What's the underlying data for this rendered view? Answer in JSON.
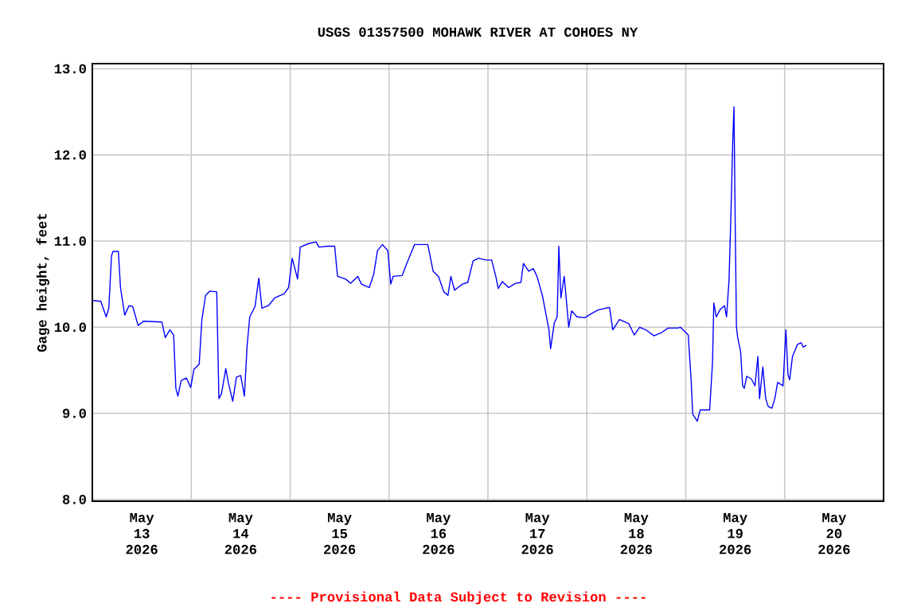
{
  "chart_data": {
    "type": "line",
    "title": "USGS 01357500 MOHAWK RIVER AT COHOES NY",
    "ylabel": "Gage height, feet",
    "annotations": [
      "---- Provisional Data Subject to Revision ----"
    ],
    "x": [
      "2026-05-13T00:08",
      "2026-05-13T02:04",
      "2026-05-13T03:21",
      "2026-05-13T04:00",
      "2026-05-13T04:39",
      "2026-05-13T05:02",
      "2026-05-13T06:19",
      "2026-05-13T06:50",
      "2026-05-13T07:52",
      "2026-05-13T08:54",
      "2026-05-13T09:48",
      "2026-05-13T11:06",
      "2026-05-13T12:23",
      "2026-05-13T16:54",
      "2026-05-13T17:41",
      "2026-05-13T18:50",
      "2026-05-13T19:44",
      "2026-05-13T20:16",
      "2026-05-13T20:46",
      "2026-05-13T21:33",
      "2026-05-13T22:50",
      "2026-05-13T23:52",
      "2026-05-14T00:39",
      "2026-05-14T01:56",
      "2026-05-14T02:35",
      "2026-05-14T03:29",
      "2026-05-14T04:31",
      "2026-05-14T06:11",
      "2026-05-14T06:43",
      "2026-05-14T07:21",
      "2026-05-14T08:23",
      "2026-05-14T09:02",
      "2026-05-14T10:04",
      "2026-05-14T10:58",
      "2026-05-14T12:00",
      "2026-05-14T12:54",
      "2026-05-14T13:33",
      "2026-05-14T14:12",
      "2026-05-14T15:29",
      "2026-05-14T16:23",
      "2026-05-14T17:10",
      "2026-05-14T18:43",
      "2026-05-14T20:16",
      "2026-05-14T22:35",
      "2026-05-14T23:37",
      "2026-05-15T00:30",
      "2026-05-15T01:48",
      "2026-05-15T02:27",
      "2026-05-15T04:24",
      "2026-05-15T06:18",
      "2026-05-15T07:00",
      "2026-05-15T08:54",
      "2026-05-15T10:48",
      "2026-05-15T11:30",
      "2026-05-15T13:24",
      "2026-05-15T14:42",
      "2026-05-15T16:24",
      "2026-05-15T17:18",
      "2026-05-15T19:12",
      "2026-05-15T20:18",
      "2026-05-15T21:12",
      "2026-05-15T22:24",
      "2026-05-15T23:42",
      "2026-05-16T00:24",
      "2026-05-16T01:00",
      "2026-05-16T03:12",
      "2026-05-16T04:18",
      "2026-05-16T06:12",
      "2026-05-16T09:24",
      "2026-05-16T10:42",
      "2026-05-16T12:00",
      "2026-05-16T13:18",
      "2026-05-16T14:18",
      "2026-05-16T15:00",
      "2026-05-16T15:54",
      "2026-05-16T17:48",
      "2026-05-16T19:06",
      "2026-05-16T20:24",
      "2026-05-16T21:42",
      "2026-05-16T23:36",
      "2026-05-17T00:54",
      "2026-05-17T01:54",
      "2026-05-17T02:30",
      "2026-05-17T03:30",
      "2026-05-17T05:00",
      "2026-05-17T06:42",
      "2026-05-17T08:00",
      "2026-05-17T08:36",
      "2026-05-17T09:54",
      "2026-05-17T11:00",
      "2026-05-17T11:54",
      "2026-05-17T13:12",
      "2026-05-17T13:48",
      "2026-05-17T14:48",
      "2026-05-17T15:12",
      "2026-05-17T16:06",
      "2026-05-17T16:48",
      "2026-05-17T17:12",
      "2026-05-17T17:42",
      "2026-05-17T18:30",
      "2026-05-17T19:12",
      "2026-05-17T19:36",
      "2026-05-17T20:18",
      "2026-05-17T21:36",
      "2026-05-17T23:30",
      "2026-05-18T00:48",
      "2026-05-18T02:42",
      "2026-05-18T05:30",
      "2026-05-18T06:18",
      "2026-05-18T07:54",
      "2026-05-18T10:12",
      "2026-05-18T11:30",
      "2026-05-18T12:48",
      "2026-05-18T14:18",
      "2026-05-18T16:18",
      "2026-05-18T18:12",
      "2026-05-18T19:42",
      "2026-05-18T22:06",
      "2026-05-18T22:42",
      "2026-05-19T00:36",
      "2026-05-19T01:18",
      "2026-05-19T01:42",
      "2026-05-19T02:48",
      "2026-05-19T03:30",
      "2026-05-19T05:48",
      "2026-05-19T06:30",
      "2026-05-19T06:48",
      "2026-05-19T07:24",
      "2026-05-19T08:24",
      "2026-05-19T09:24",
      "2026-05-19T09:54",
      "2026-05-19T10:30",
      "2026-05-19T11:00",
      "2026-05-19T11:24",
      "2026-05-19T11:42",
      "2026-05-19T12:00",
      "2026-05-19T12:18",
      "2026-05-19T12:36",
      "2026-05-19T13:18",
      "2026-05-19T13:48",
      "2026-05-19T14:12",
      "2026-05-19T14:48",
      "2026-05-19T15:54",
      "2026-05-19T16:48",
      "2026-05-19T17:30",
      "2026-05-19T17:54",
      "2026-05-19T18:42",
      "2026-05-19T19:24",
      "2026-05-19T20:00",
      "2026-05-19T20:54",
      "2026-05-19T21:36",
      "2026-05-19T22:18",
      "2026-05-19T23:36",
      "2026-05-20T00:18",
      "2026-05-20T00:48",
      "2026-05-20T01:12",
      "2026-05-20T01:54",
      "2026-05-20T03:06",
      "2026-05-20T04:00",
      "2026-05-20T04:30",
      "2026-05-20T05:18"
    ],
    "series": [
      {
        "color": "#0000ff",
        "values": [
          10.31,
          10.3,
          10.12,
          10.22,
          10.83,
          10.88,
          10.88,
          10.46,
          10.14,
          10.25,
          10.24,
          10.02,
          10.07,
          10.06,
          9.88,
          9.97,
          9.91,
          9.29,
          9.2,
          9.38,
          9.41,
          9.3,
          9.51,
          9.57,
          10.09,
          10.37,
          10.42,
          10.41,
          9.17,
          9.23,
          9.52,
          9.35,
          9.14,
          9.42,
          9.44,
          9.2,
          9.78,
          10.12,
          10.24,
          10.57,
          10.22,
          10.25,
          10.34,
          10.39,
          10.46,
          10.8,
          10.56,
          10.93,
          10.97,
          10.99,
          10.93,
          10.94,
          10.94,
          10.59,
          10.56,
          10.51,
          10.59,
          10.5,
          10.46,
          10.62,
          10.89,
          10.96,
          10.89,
          10.5,
          10.59,
          10.6,
          10.74,
          10.96,
          10.96,
          10.65,
          10.59,
          10.41,
          10.37,
          10.59,
          10.43,
          10.5,
          10.52,
          10.77,
          10.8,
          10.78,
          10.78,
          10.59,
          10.45,
          10.53,
          10.46,
          10.51,
          10.52,
          10.74,
          10.65,
          10.68,
          10.59,
          10.37,
          10.22,
          9.97,
          9.75,
          10.05,
          10.12,
          10.94,
          10.34,
          10.59,
          10.22,
          10.0,
          10.19,
          10.12,
          10.11,
          10.15,
          10.2,
          10.23,
          9.97,
          10.09,
          10.04,
          9.91,
          10.0,
          9.97,
          9.9,
          9.94,
          9.99,
          9.99,
          10.0,
          9.91,
          9.39,
          8.99,
          8.91,
          9.04,
          9.04,
          9.6,
          10.28,
          10.12,
          10.21,
          10.25,
          10.12,
          10.55,
          11.38,
          12.15,
          12.56,
          11.2,
          10.0,
          9.88,
          9.72,
          9.32,
          9.29,
          9.43,
          9.4,
          9.32,
          9.66,
          9.17,
          9.54,
          9.17,
          9.08,
          9.06,
          9.17,
          9.36,
          9.32,
          9.97,
          9.45,
          9.39,
          9.66,
          9.8,
          9.82,
          9.77,
          9.79
        ]
      }
    ],
    "xlim": [
      "2026-05-13T00:00",
      "2026-05-21T00:00"
    ],
    "xticks": [
      {
        "value": "2026-05-14T00:00",
        "label": null
      },
      {
        "value": "2026-05-15T00:00",
        "label": null
      },
      {
        "value": "2026-05-16T00:00",
        "label": null
      },
      {
        "value": "2026-05-17T00:00",
        "label": null
      },
      {
        "value": "2026-05-18T00:00",
        "label": null
      },
      {
        "value": "2026-05-19T00:00",
        "label": null
      },
      {
        "value": "2026-05-20T00:00",
        "label": null
      },
      {
        "value": "2026-05-13T12:00",
        "label": "May 13 2026"
      },
      {
        "value": "2026-05-14T12:00",
        "label": "May 14 2026"
      },
      {
        "value": "2026-05-15T12:00",
        "label": "May 15 2026"
      },
      {
        "value": "2026-05-16T12:00",
        "label": "May 16 2026"
      },
      {
        "value": "2026-05-17T12:00",
        "label": "May 17 2026"
      },
      {
        "value": "2026-05-18T12:00",
        "label": "May 18 2026"
      },
      {
        "value": "2026-05-19T12:00",
        "label": "May 19 2026"
      },
      {
        "value": "2026-05-20T12:00",
        "label": "May 20 2026"
      }
    ],
    "ylim": [
      7.98,
      13.06
    ],
    "yticks": [
      {
        "value": 8,
        "label": "8.0"
      },
      {
        "value": 9,
        "label": "9.0"
      },
      {
        "value": 10,
        "label": "10.0"
      },
      {
        "value": 11,
        "label": "11.0"
      },
      {
        "value": 12,
        "label": "12.0"
      },
      {
        "value": 13,
        "label": "13.0"
      }
    ],
    "grid": true
  }
}
